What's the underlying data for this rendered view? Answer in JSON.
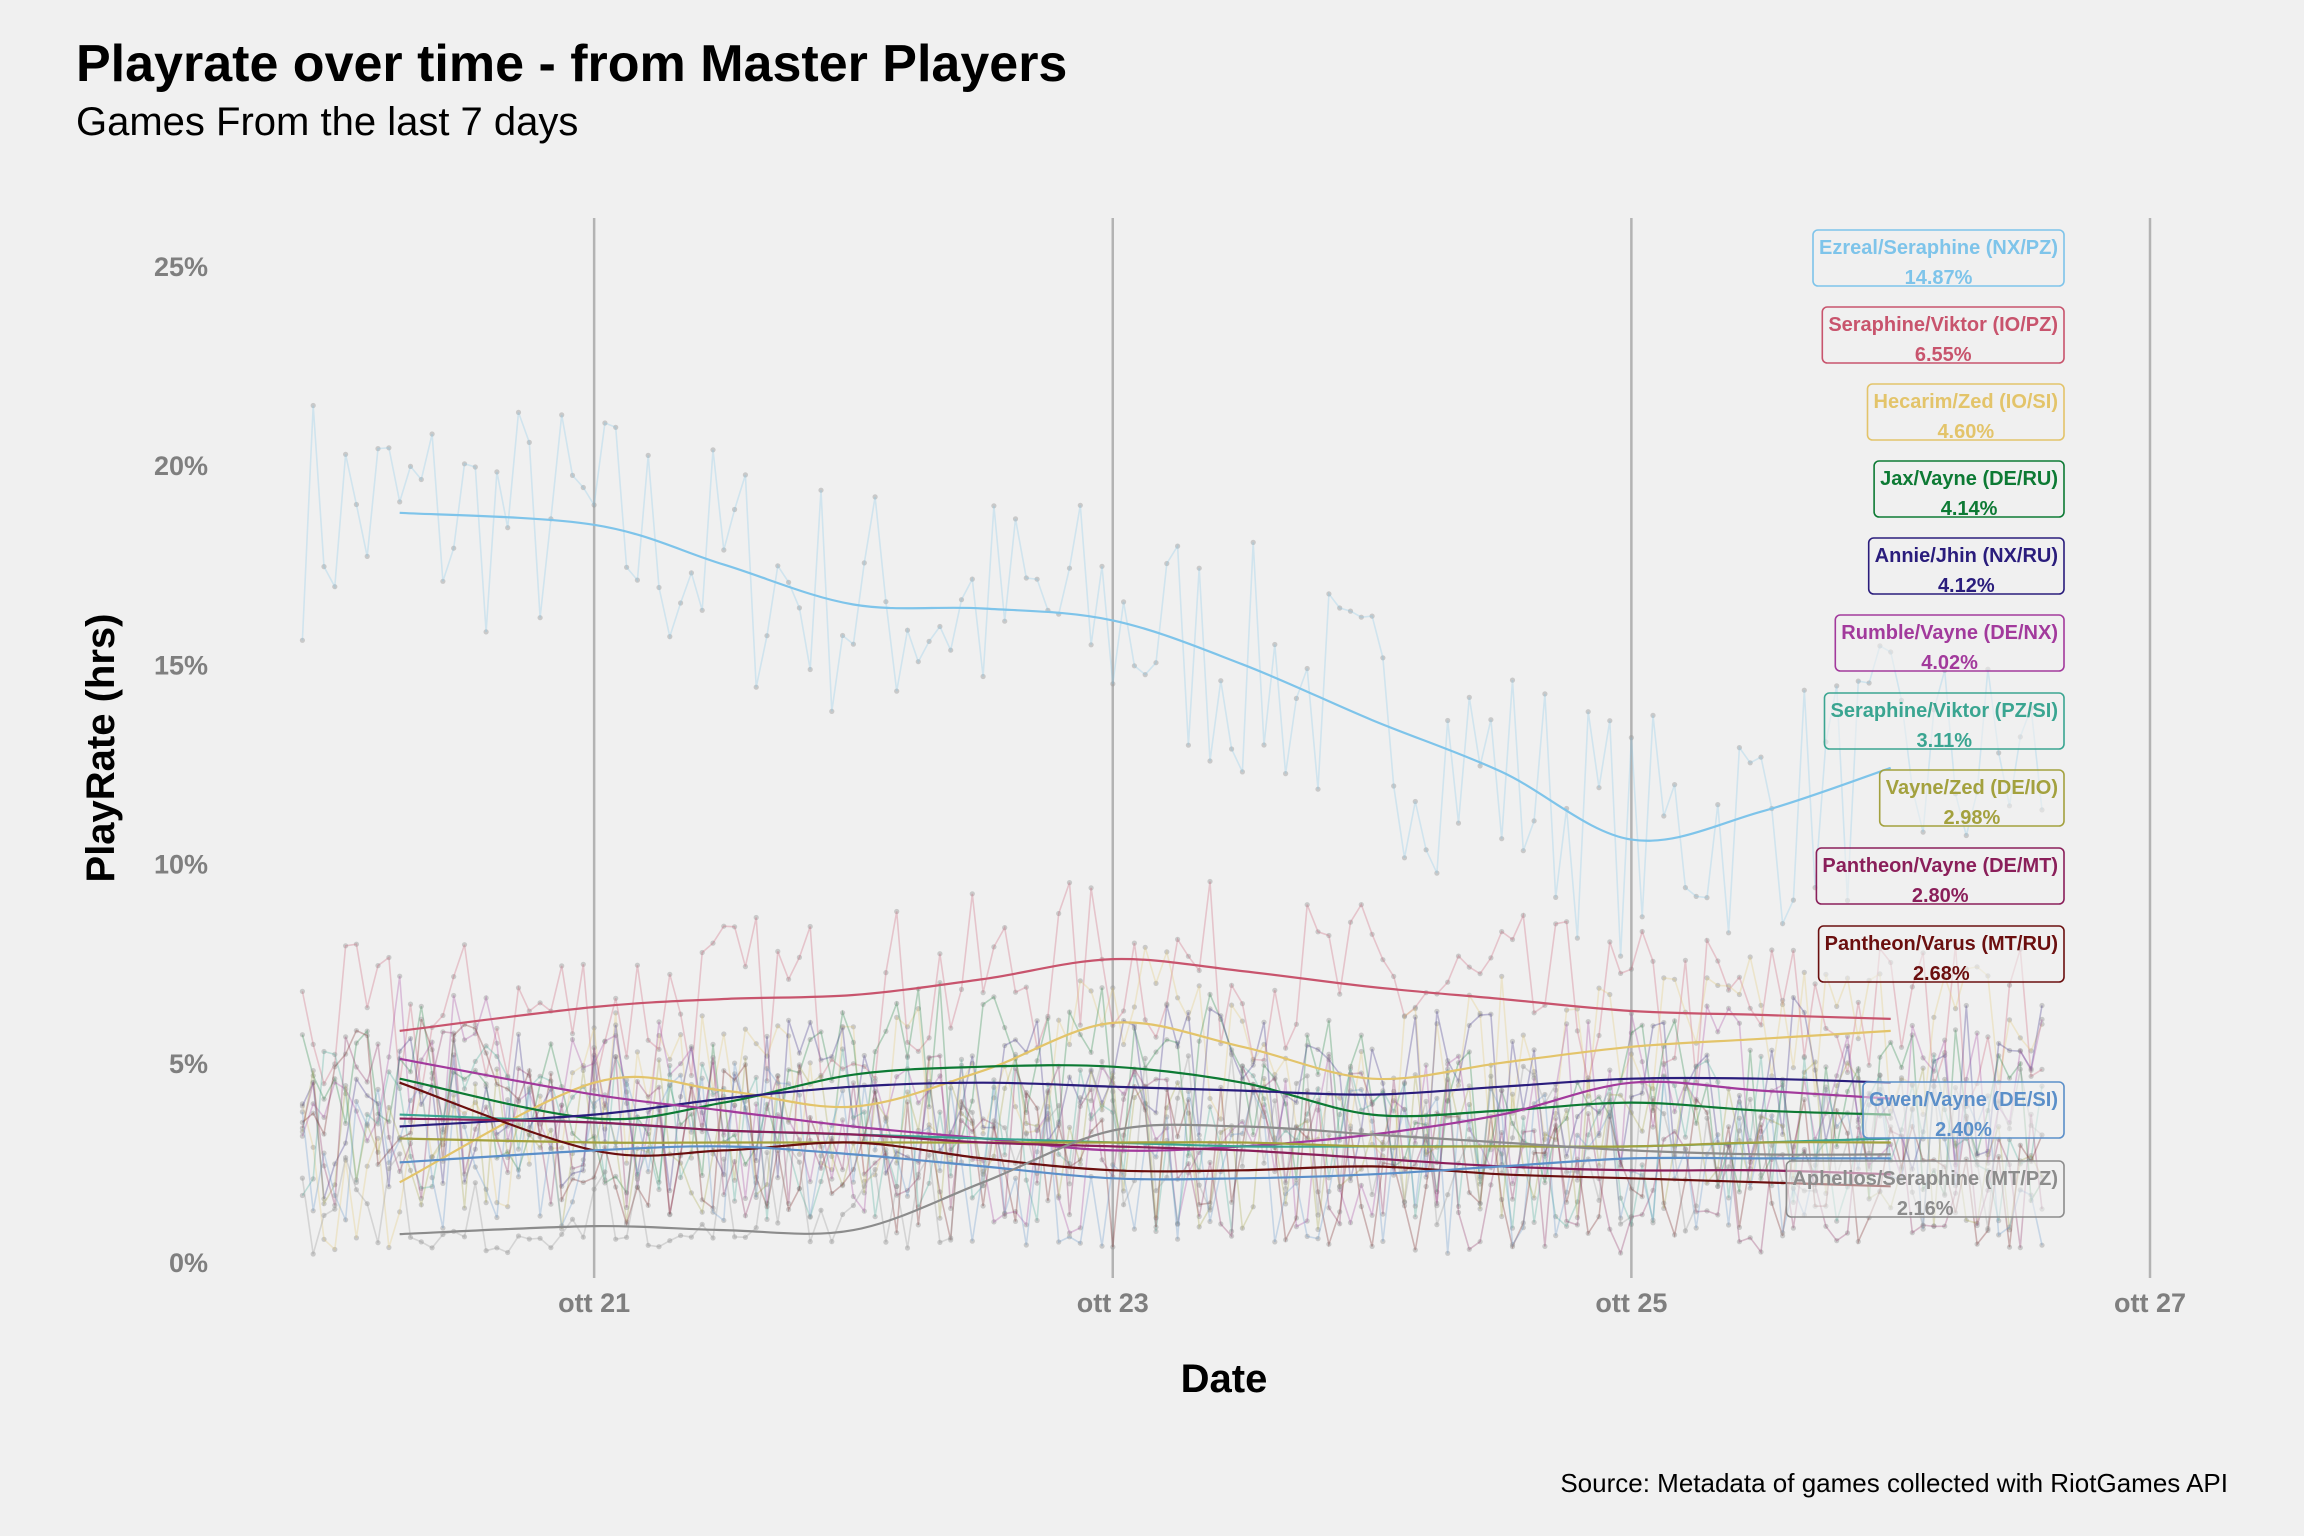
{
  "title": "Playrate over time - from Master Players",
  "subtitle": "Games From the last 7 days",
  "caption": "Source: Metadata of games collected with RiotGames API",
  "chart_data": {
    "type": "line",
    "title": "Playrate over time - from Master Players",
    "subtitle": "Games From the last 7 days",
    "xlabel": "Date",
    "ylabel": "PlayRate (hrs)",
    "x_axis": "date",
    "xlim": [
      "2020-10-19T18:00",
      "2020-10-27T00:00"
    ],
    "ylim": [
      0,
      26.5
    ],
    "x_ticks": [
      {
        "x": "2020-10-21",
        "label": "ott 21"
      },
      {
        "x": "2020-10-23",
        "label": "ott 23"
      },
      {
        "x": "2020-10-25",
        "label": "ott 25"
      },
      {
        "x": "2020-10-27",
        "label": "ott 27"
      }
    ],
    "y_ticks": [
      {
        "y": 0,
        "label": "0%"
      },
      {
        "y": 5,
        "label": "5%"
      },
      {
        "y": 10,
        "label": "10%"
      },
      {
        "y": 15,
        "label": "15%"
      },
      {
        "y": 20,
        "label": "20%"
      },
      {
        "y": 25,
        "label": "25%"
      }
    ],
    "grid": "vertical major lines only",
    "legend": "direct labels at right end of lines",
    "raw_series_style": "faint points joined by thin lines at roughly hourly intervals (individual values not recoverable)",
    "series": [
      {
        "name": "Ezreal/Seraphine (NX/PZ)",
        "label": "14.87%",
        "color": "#7ec4ea",
        "trend": [
          [
            "2020-10-20T06:00",
            18.8
          ],
          [
            "2020-10-21T00:00",
            18.5
          ],
          [
            "2020-10-21T12:00",
            17.5
          ],
          [
            "2020-10-22T00:00",
            16.5
          ],
          [
            "2020-10-22T12:00",
            16.4
          ],
          [
            "2020-10-23T00:00",
            16.1
          ],
          [
            "2020-10-23T12:00",
            15.0
          ],
          [
            "2020-10-24T00:00",
            13.6
          ],
          [
            "2020-10-24T12:00",
            12.3
          ],
          [
            "2020-10-25T00:00",
            10.6
          ],
          [
            "2020-10-25T12:00",
            11.3
          ],
          [
            "2020-10-26T00:00",
            12.4
          ]
        ]
      },
      {
        "name": "Seraphine/Viktor (IO/PZ)",
        "label": "6.55%",
        "color": "#c8546d",
        "trend": [
          [
            "2020-10-20T06:00",
            5.8
          ],
          [
            "2020-10-21T00:00",
            6.4
          ],
          [
            "2020-10-21T12:00",
            6.6
          ],
          [
            "2020-10-22T00:00",
            6.7
          ],
          [
            "2020-10-22T12:00",
            7.1
          ],
          [
            "2020-10-23T00:00",
            7.6
          ],
          [
            "2020-10-23T12:00",
            7.3
          ],
          [
            "2020-10-24T00:00",
            6.9
          ],
          [
            "2020-10-24T12:00",
            6.6
          ],
          [
            "2020-10-25T00:00",
            6.3
          ],
          [
            "2020-10-25T12:00",
            6.2
          ],
          [
            "2020-10-26T00:00",
            6.1
          ]
        ]
      },
      {
        "name": "Hecarim/Zed (IO/SI)",
        "label": "4.60%",
        "color": "#e3c46a",
        "trend": [
          [
            "2020-10-20T06:00",
            2.0
          ],
          [
            "2020-10-21T00:00",
            4.5
          ],
          [
            "2020-10-21T12:00",
            4.3
          ],
          [
            "2020-10-22T00:00",
            3.9
          ],
          [
            "2020-10-22T12:00",
            4.8
          ],
          [
            "2020-10-23T00:00",
            6.0
          ],
          [
            "2020-10-23T12:00",
            5.4
          ],
          [
            "2020-10-24T00:00",
            4.6
          ],
          [
            "2020-10-24T12:00",
            5.0
          ],
          [
            "2020-10-25T00:00",
            5.4
          ],
          [
            "2020-10-25T12:00",
            5.6
          ],
          [
            "2020-10-26T00:00",
            5.8
          ]
        ]
      },
      {
        "name": "Jax/Vayne (DE/RU)",
        "label": "4.14%",
        "color": "#0d7a34",
        "trend": [
          [
            "2020-10-20T06:00",
            4.6
          ],
          [
            "2020-10-21T00:00",
            3.6
          ],
          [
            "2020-10-21T12:00",
            4.0
          ],
          [
            "2020-10-22T00:00",
            4.7
          ],
          [
            "2020-10-22T12:00",
            4.9
          ],
          [
            "2020-10-23T00:00",
            4.9
          ],
          [
            "2020-10-23T12:00",
            4.5
          ],
          [
            "2020-10-24T00:00",
            3.7
          ],
          [
            "2020-10-24T12:00",
            3.8
          ],
          [
            "2020-10-25T00:00",
            4.0
          ],
          [
            "2020-10-25T12:00",
            3.8
          ],
          [
            "2020-10-26T00:00",
            3.7
          ]
        ]
      },
      {
        "name": "Annie/Jhin (NX/RU)",
        "label": "4.12%",
        "color": "#2a1d7c",
        "trend": [
          [
            "2020-10-20T06:00",
            3.4
          ],
          [
            "2020-10-21T00:00",
            3.7
          ],
          [
            "2020-10-21T12:00",
            4.1
          ],
          [
            "2020-10-22T00:00",
            4.4
          ],
          [
            "2020-10-22T12:00",
            4.5
          ],
          [
            "2020-10-23T00:00",
            4.4
          ],
          [
            "2020-10-23T12:00",
            4.3
          ],
          [
            "2020-10-24T00:00",
            4.2
          ],
          [
            "2020-10-24T12:00",
            4.4
          ],
          [
            "2020-10-25T00:00",
            4.6
          ],
          [
            "2020-10-25T12:00",
            4.6
          ],
          [
            "2020-10-26T00:00",
            4.5
          ]
        ]
      },
      {
        "name": "Rumble/Vayne (DE/NX)",
        "label": "4.02%",
        "color": "#a23a9c",
        "trend": [
          [
            "2020-10-20T06:00",
            5.1
          ],
          [
            "2020-10-21T00:00",
            4.2
          ],
          [
            "2020-10-21T12:00",
            3.8
          ],
          [
            "2020-10-22T00:00",
            3.4
          ],
          [
            "2020-10-22T12:00",
            3.1
          ],
          [
            "2020-10-23T00:00",
            2.8
          ],
          [
            "2020-10-23T12:00",
            2.9
          ],
          [
            "2020-10-24T00:00",
            3.2
          ],
          [
            "2020-10-24T12:00",
            3.7
          ],
          [
            "2020-10-25T00:00",
            4.5
          ],
          [
            "2020-10-25T12:00",
            4.3
          ],
          [
            "2020-10-26T00:00",
            4.1
          ]
        ]
      },
      {
        "name": "Seraphine/Viktor (PZ/SI)",
        "label": "3.11%",
        "color": "#3aa591",
        "trend": [
          [
            "2020-10-20T06:00",
            3.7
          ],
          [
            "2020-10-21T00:00",
            3.5
          ],
          [
            "2020-10-21T12:00",
            3.3
          ],
          [
            "2020-10-22T00:00",
            3.2
          ],
          [
            "2020-10-22T12:00",
            3.1
          ],
          [
            "2020-10-23T00:00",
            3.0
          ],
          [
            "2020-10-23T12:00",
            2.9
          ],
          [
            "2020-10-24T00:00",
            2.9
          ],
          [
            "2020-10-24T12:00",
            2.9
          ],
          [
            "2020-10-25T00:00",
            2.9
          ],
          [
            "2020-10-25T12:00",
            3.0
          ],
          [
            "2020-10-26T00:00",
            3.1
          ]
        ]
      },
      {
        "name": "Vayne/Zed (DE/IO)",
        "label": "2.98%",
        "color": "#a3a13e",
        "trend": [
          [
            "2020-10-20T06:00",
            3.1
          ],
          [
            "2020-10-21T00:00",
            3.0
          ],
          [
            "2020-10-21T12:00",
            3.0
          ],
          [
            "2020-10-22T00:00",
            3.0
          ],
          [
            "2020-10-22T12:00",
            3.0
          ],
          [
            "2020-10-23T00:00",
            3.0
          ],
          [
            "2020-10-23T12:00",
            3.0
          ],
          [
            "2020-10-24T00:00",
            2.9
          ],
          [
            "2020-10-24T12:00",
            2.9
          ],
          [
            "2020-10-25T00:00",
            2.9
          ],
          [
            "2020-10-25T12:00",
            3.0
          ],
          [
            "2020-10-26T00:00",
            3.0
          ]
        ]
      },
      {
        "name": "Pantheon/Vayne (DE/MT)",
        "label": "2.80%",
        "color": "#8a1f5a",
        "trend": [
          [
            "2020-10-20T06:00",
            3.6
          ],
          [
            "2020-10-21T00:00",
            3.5
          ],
          [
            "2020-10-21T12:00",
            3.3
          ],
          [
            "2020-10-22T00:00",
            3.2
          ],
          [
            "2020-10-22T12:00",
            3.0
          ],
          [
            "2020-10-23T00:00",
            2.9
          ],
          [
            "2020-10-23T12:00",
            2.8
          ],
          [
            "2020-10-24T00:00",
            2.6
          ],
          [
            "2020-10-24T12:00",
            2.4
          ],
          [
            "2020-10-25T00:00",
            2.3
          ],
          [
            "2020-10-25T12:00",
            2.3
          ],
          [
            "2020-10-26T00:00",
            2.2
          ]
        ]
      },
      {
        "name": "Pantheon/Varus (MT/RU)",
        "label": "2.68%",
        "color": "#6b0f0f",
        "trend": [
          [
            "2020-10-20T06:00",
            4.5
          ],
          [
            "2020-10-21T00:00",
            2.8
          ],
          [
            "2020-10-21T12:00",
            2.8
          ],
          [
            "2020-10-22T00:00",
            3.0
          ],
          [
            "2020-10-22T12:00",
            2.6
          ],
          [
            "2020-10-23T00:00",
            2.3
          ],
          [
            "2020-10-23T12:00",
            2.3
          ],
          [
            "2020-10-24T00:00",
            2.4
          ],
          [
            "2020-10-24T12:00",
            2.2
          ],
          [
            "2020-10-25T00:00",
            2.1
          ],
          [
            "2020-10-25T12:00",
            2.0
          ],
          [
            "2020-10-26T00:00",
            1.9
          ]
        ]
      },
      {
        "name": "Gwen/Vayne (DE/SI)",
        "label": "2.40%",
        "color": "#5b8fc9",
        "trend": [
          [
            "2020-10-20T06:00",
            2.5
          ],
          [
            "2020-10-21T00:00",
            2.8
          ],
          [
            "2020-10-21T12:00",
            2.9
          ],
          [
            "2020-10-22T00:00",
            2.7
          ],
          [
            "2020-10-22T12:00",
            2.4
          ],
          [
            "2020-10-23T00:00",
            2.1
          ],
          [
            "2020-10-23T12:00",
            2.1
          ],
          [
            "2020-10-24T00:00",
            2.2
          ],
          [
            "2020-10-24T12:00",
            2.4
          ],
          [
            "2020-10-25T00:00",
            2.6
          ],
          [
            "2020-10-25T12:00",
            2.6
          ],
          [
            "2020-10-26T00:00",
            2.6
          ]
        ]
      },
      {
        "name": "Aphelios/Seraphine (MT/PZ)",
        "label": "2.16%",
        "color": "#8c8c8c",
        "trend": [
          [
            "2020-10-20T06:00",
            0.7
          ],
          [
            "2020-10-21T00:00",
            0.9
          ],
          [
            "2020-10-21T12:00",
            0.8
          ],
          [
            "2020-10-22T00:00",
            0.8
          ],
          [
            "2020-10-22T12:00",
            2.0
          ],
          [
            "2020-10-23T00:00",
            3.3
          ],
          [
            "2020-10-23T12:00",
            3.4
          ],
          [
            "2020-10-24T00:00",
            3.2
          ],
          [
            "2020-10-24T12:00",
            3.0
          ],
          [
            "2020-10-25T00:00",
            2.8
          ],
          [
            "2020-10-25T12:00",
            2.7
          ],
          [
            "2020-10-26T00:00",
            2.7
          ]
        ]
      }
    ]
  }
}
